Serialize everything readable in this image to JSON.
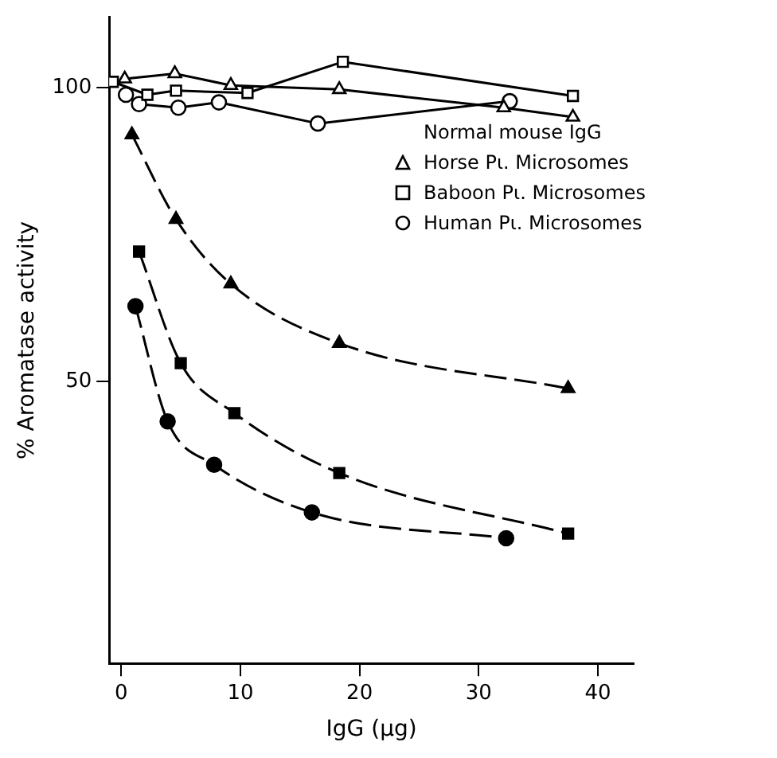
{
  "chart_data": {
    "type": "line",
    "xlabel": "IgG (μg)",
    "ylabel": "% Aromatase activity",
    "legend_title": "Normal mouse IgG",
    "legend": "right",
    "grid": false,
    "xlim": [
      -1,
      43
    ],
    "xticks": [
      0,
      10,
      20,
      30,
      40
    ],
    "ylim": [
      2,
      112
    ],
    "yticks": [
      50,
      100
    ],
    "series": [
      {
        "name": "Horse Pι. Microsomes",
        "color": "#000000",
        "marker": "triangle",
        "x": [
          0.3,
          4.5,
          9.2,
          18.3,
          32.1,
          37.9
        ],
        "values": [
          101.5,
          102.4,
          100.4,
          99.7,
          96.6,
          95
        ]
      },
      {
        "name": "Baboon Pι. Microsomes",
        "color": "#000000",
        "marker": "square",
        "x": [
          -0.7,
          2.2,
          4.6,
          10.6,
          18.6,
          37.9
        ],
        "values": [
          101,
          98.8,
          99.5,
          99.1,
          104.4,
          98.6
        ]
      },
      {
        "name": "Human Pι. Microsomes",
        "color": "#000000",
        "marker": "circle",
        "x": [
          0.4,
          1.5,
          4.8,
          8.2,
          16.5,
          32.6
        ],
        "values": [
          98.8,
          97.2,
          96.6,
          97.5,
          93.9,
          97.7
        ]
      },
      {
        "color": "#000000",
        "marker": "triangle",
        "line_style": "dashed",
        "x": [
          0.9,
          4.6,
          9.2,
          18.3,
          37.5
        ],
        "values": [
          92,
          77.6,
          66.6,
          56.5,
          48.8
        ]
      },
      {
        "color": "#000000",
        "marker": "square",
        "line_style": "dashed",
        "x": [
          1.5,
          5,
          9.5,
          18.3,
          37.5
        ],
        "values": [
          72.1,
          53.1,
          44.6,
          34.4,
          24.1
        ]
      },
      {
        "color": "#000000",
        "marker": "circle",
        "line_style": "dashed",
        "x": [
          1.2,
          3.9,
          7.8,
          16,
          32.3
        ],
        "values": [
          62.8,
          43.2,
          35.8,
          27.7,
          23.3
        ]
      }
    ]
  }
}
